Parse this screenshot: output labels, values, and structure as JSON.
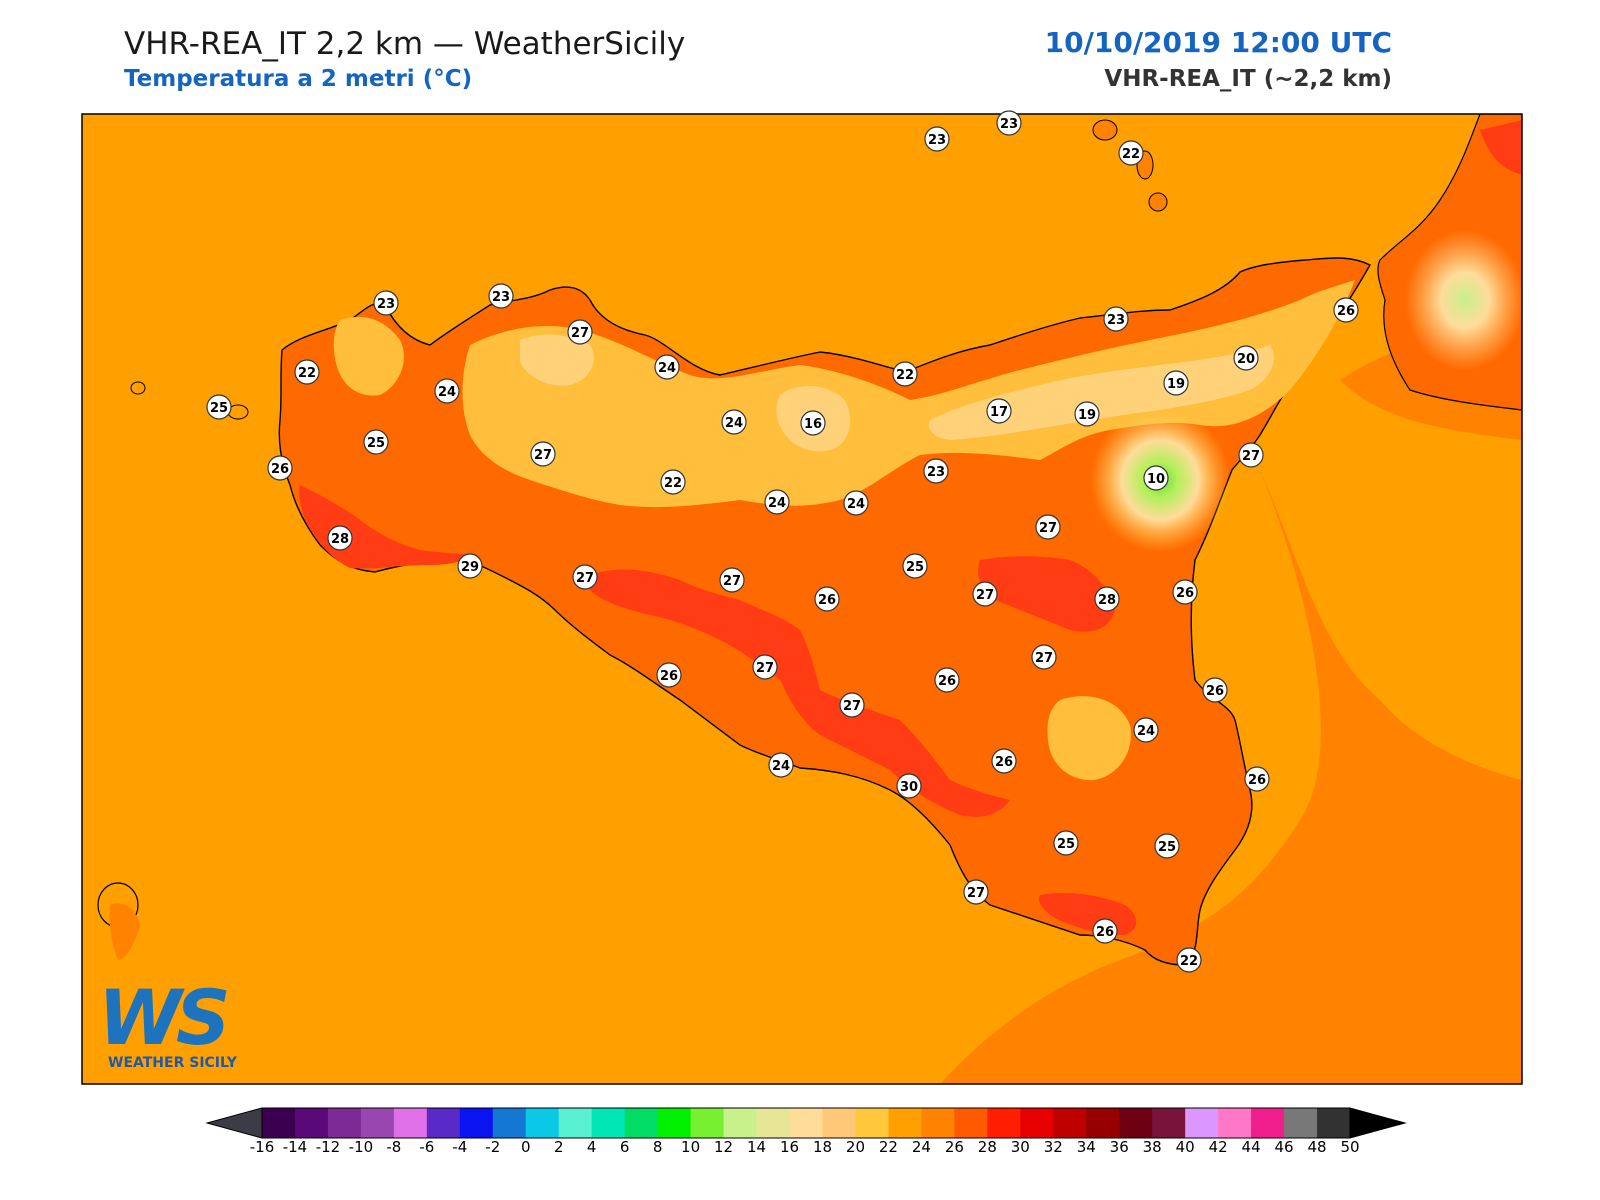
{
  "header": {
    "title": "VHR-REA_IT 2,2 km — WeatherSicily",
    "subtitle": "Temperatura a 2 metri (°C)",
    "datetime": "10/10/2019 12:00 UTC",
    "model": "VHR-REA_IT (~2,2 km)"
  },
  "logo": {
    "letters": "WS",
    "text": "WEATHER SICILY"
  },
  "colors": {
    "sea_background": "#ffa000",
    "land_warm": "#ff6a00",
    "land_hot": "#ff3c14",
    "land_cool": "#ffbe3c",
    "land_mild": "#ffd27a",
    "peak_cold": "#b4f05a",
    "coast": "#000000"
  },
  "stations": [
    {
      "value": "23"
    },
    {
      "value": "23"
    },
    {
      "value": "22"
    },
    {
      "value": "23"
    },
    {
      "value": "23"
    },
    {
      "value": "26"
    },
    {
      "value": "27"
    },
    {
      "value": "23"
    },
    {
      "value": "20"
    },
    {
      "value": "22"
    },
    {
      "value": "24"
    },
    {
      "value": "22"
    },
    {
      "value": "19"
    },
    {
      "value": "24"
    },
    {
      "value": "25"
    },
    {
      "value": "17"
    },
    {
      "value": "19"
    },
    {
      "value": "24"
    },
    {
      "value": "16"
    },
    {
      "value": "25"
    },
    {
      "value": "27"
    },
    {
      "value": "27"
    },
    {
      "value": "23"
    },
    {
      "value": "10"
    },
    {
      "value": "26"
    },
    {
      "value": "22"
    },
    {
      "value": "24"
    },
    {
      "value": "24"
    },
    {
      "value": "28"
    },
    {
      "value": "27"
    },
    {
      "value": "29"
    },
    {
      "value": "27"
    },
    {
      "value": "27"
    },
    {
      "value": "25"
    },
    {
      "value": "26"
    },
    {
      "value": "27"
    },
    {
      "value": "28"
    },
    {
      "value": "26"
    },
    {
      "value": "27"
    },
    {
      "value": "27"
    },
    {
      "value": "26"
    },
    {
      "value": "26"
    },
    {
      "value": "27"
    },
    {
      "value": "24"
    },
    {
      "value": "26"
    },
    {
      "value": "26"
    },
    {
      "value": "30"
    },
    {
      "value": "26"
    },
    {
      "value": "24"
    },
    {
      "value": "25"
    },
    {
      "value": "25"
    },
    {
      "value": "27"
    },
    {
      "value": "26"
    },
    {
      "value": "22"
    }
  ],
  "colorbar": {
    "labels": [
      "-16",
      "-14",
      "-12",
      "-10",
      "-8",
      "-6",
      "-4",
      "-2",
      "0",
      "2",
      "4",
      "6",
      "8",
      "10",
      "12",
      "14",
      "16",
      "18",
      "20",
      "22",
      "24",
      "26",
      "28",
      "30",
      "32",
      "34",
      "36",
      "38",
      "40",
      "42",
      "44",
      "46",
      "48",
      "50"
    ],
    "colors": [
      "#3c0050",
      "#5a0a78",
      "#7b2a96",
      "#9a46b0",
      "#e070e8",
      "#5a2ac8",
      "#0a14f0",
      "#1478d2",
      "#0ac8e6",
      "#5af0d2",
      "#00e6b4",
      "#00dc64",
      "#00f000",
      "#78f032",
      "#c8f08c",
      "#e6e696",
      "#ffdc9a",
      "#ffc878",
      "#ffc83c",
      "#ffa000",
      "#ff8200",
      "#ff5a00",
      "#ff1e00",
      "#e60000",
      "#be0000",
      "#960000",
      "#6e0014",
      "#78143c",
      "#dc96ff",
      "#ff78c8",
      "#f01e8c",
      "#787878",
      "#323232"
    ],
    "under_color": "#3c3c46",
    "over_color": "#000000"
  }
}
